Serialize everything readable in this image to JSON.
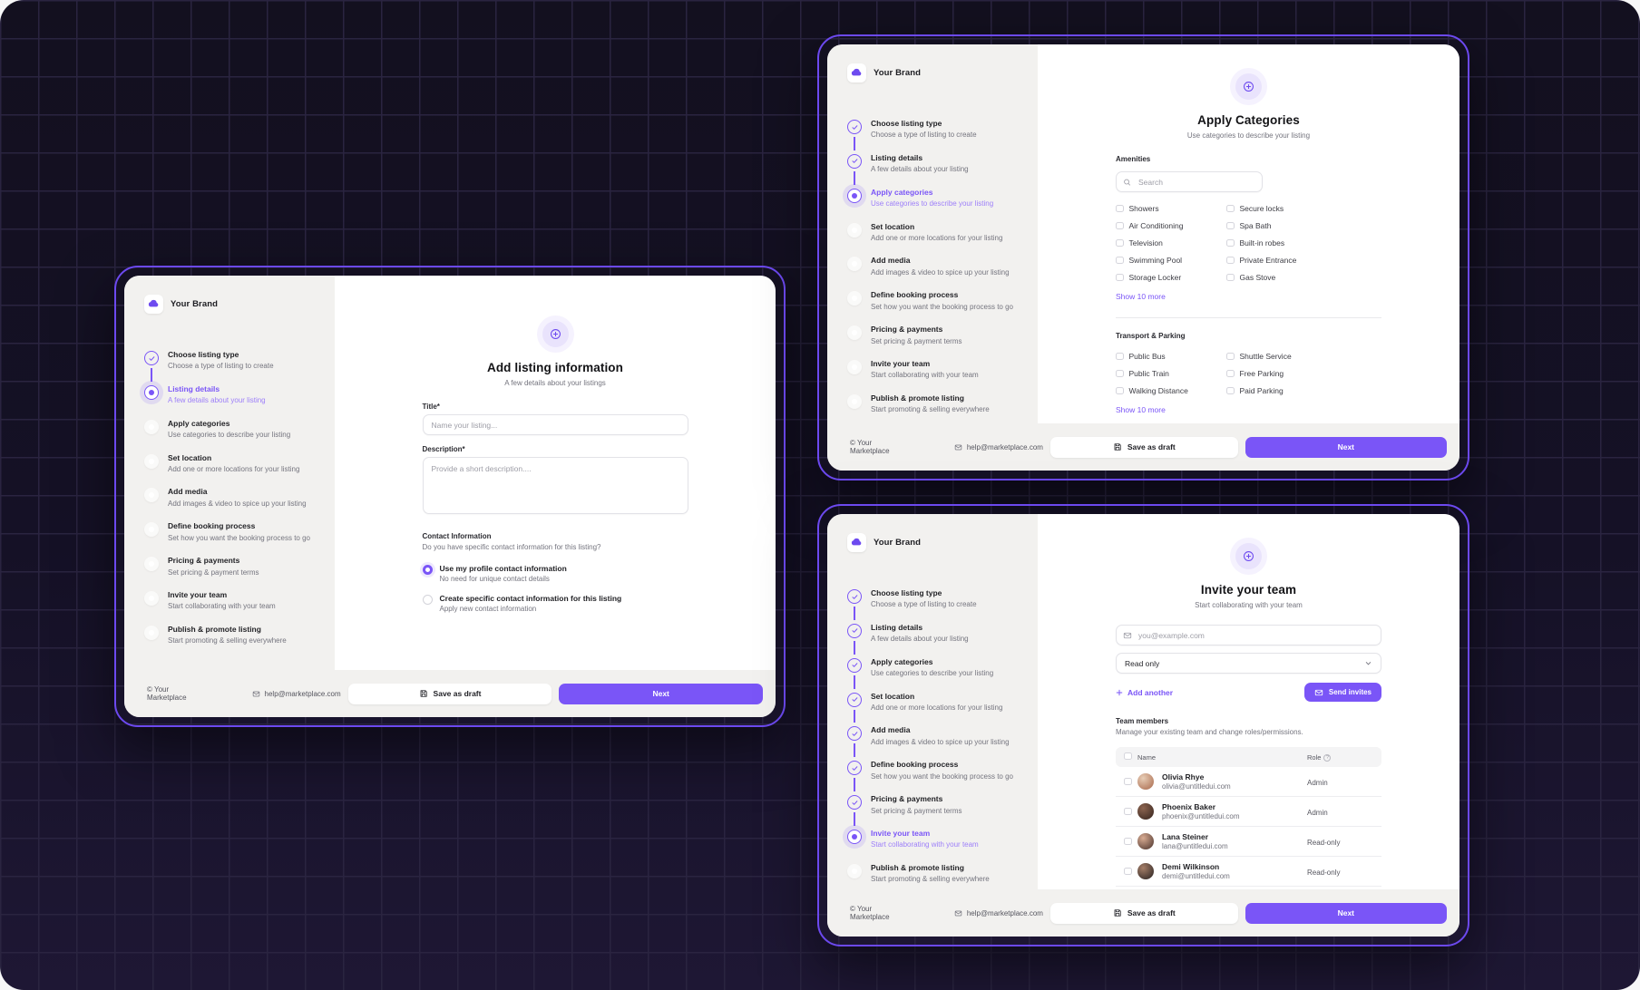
{
  "brand": {
    "name": "Your Brand"
  },
  "accent_color": "#7a55f7",
  "outline_color": "#6c49ef",
  "footer": {
    "copyright": "© Your Marketplace",
    "support_email": "help@marketplace.com",
    "save_draft_label": "Save as draft",
    "next_label": "Next"
  },
  "steps": [
    {
      "title": "Choose listing type",
      "desc": "Choose a type of listing to create"
    },
    {
      "title": "Listing details",
      "desc": "A few details about your listing"
    },
    {
      "title": "Apply categories",
      "desc": "Use categories to describe your listing"
    },
    {
      "title": "Set location",
      "desc": "Add one or more locations for your listing"
    },
    {
      "title": "Add media",
      "desc": "Add images & video to spice up your listing"
    },
    {
      "title": "Define booking process",
      "desc": "Set how you want the booking process to go"
    },
    {
      "title": "Pricing & payments",
      "desc": "Set pricing & payment terms"
    },
    {
      "title": "Invite your team",
      "desc": "Start collaborating with your team"
    },
    {
      "title": "Publish & promote listing",
      "desc": "Start promoting & selling everywhere"
    }
  ],
  "cards": {
    "listing": {
      "active_step": 1,
      "heading": "Add listing information",
      "subheading": "A few details about your listings",
      "title_label": "Title*",
      "title_placeholder": "Name your listing...",
      "description_label": "Description*",
      "description_placeholder": "Provide a short description....",
      "contact": {
        "label": "Contact Information",
        "question": "Do you have specific contact information for this listing?",
        "options": [
          {
            "title": "Use my profile contact information",
            "desc": "No need for unique contact details",
            "selected": true
          },
          {
            "title": "Create specific contact information for this listing",
            "desc": "Apply new contact information",
            "selected": false
          }
        ]
      }
    },
    "categories": {
      "active_step": 2,
      "heading": "Apply Categories",
      "subheading": "Use categories to describe your listing",
      "search_placeholder": "Search",
      "sections": [
        {
          "title": "Amenities",
          "has_search": true,
          "columns": [
            [
              "Showers",
              "Air Conditioning",
              "Television",
              "Swimming Pool",
              "Storage Locker"
            ],
            [
              "Secure locks",
              "Spa Bath",
              "Built-in robes",
              "Private Entrance",
              "Gas Stove"
            ]
          ],
          "show_more": "Show 10 more"
        },
        {
          "title": "Transport & Parking",
          "has_search": false,
          "columns": [
            [
              "Public Bus",
              "Public Train",
              "Walking Distance"
            ],
            [
              "Shuttle Service",
              "Free Parking",
              "Paid Parking"
            ]
          ],
          "show_more": "Show 10 more"
        }
      ]
    },
    "invite": {
      "active_step": 7,
      "heading": "Invite your team",
      "subheading": "Start collaborating with your team",
      "email_placeholder": "you@example.com",
      "role_value": "Read only",
      "add_another_label": "Add another",
      "send_invites_label": "Send invites",
      "team": {
        "title": "Team members",
        "subtitle": "Manage your existing team and change roles/permissions.",
        "columns": [
          "Name",
          "Role"
        ],
        "members": [
          {
            "name": "Olivia Rhye",
            "email": "olivia@untitledui.com",
            "role": "Admin",
            "avatar_colors": [
              "#e7cdb6",
              "#a8674a"
            ]
          },
          {
            "name": "Phoenix Baker",
            "email": "phoenix@untitledui.com",
            "role": "Admin",
            "avatar_colors": [
              "#8c6450",
              "#33221c"
            ]
          },
          {
            "name": "Lana Steiner",
            "email": "lana@untitledui.com",
            "role": "Read-only",
            "avatar_colors": [
              "#d8ab92",
              "#47302a"
            ]
          },
          {
            "name": "Demi Wilkinson",
            "email": "demi@untitledui.com",
            "role": "Read-only",
            "avatar_colors": [
              "#a57e68",
              "#262020"
            ]
          }
        ]
      }
    }
  }
}
